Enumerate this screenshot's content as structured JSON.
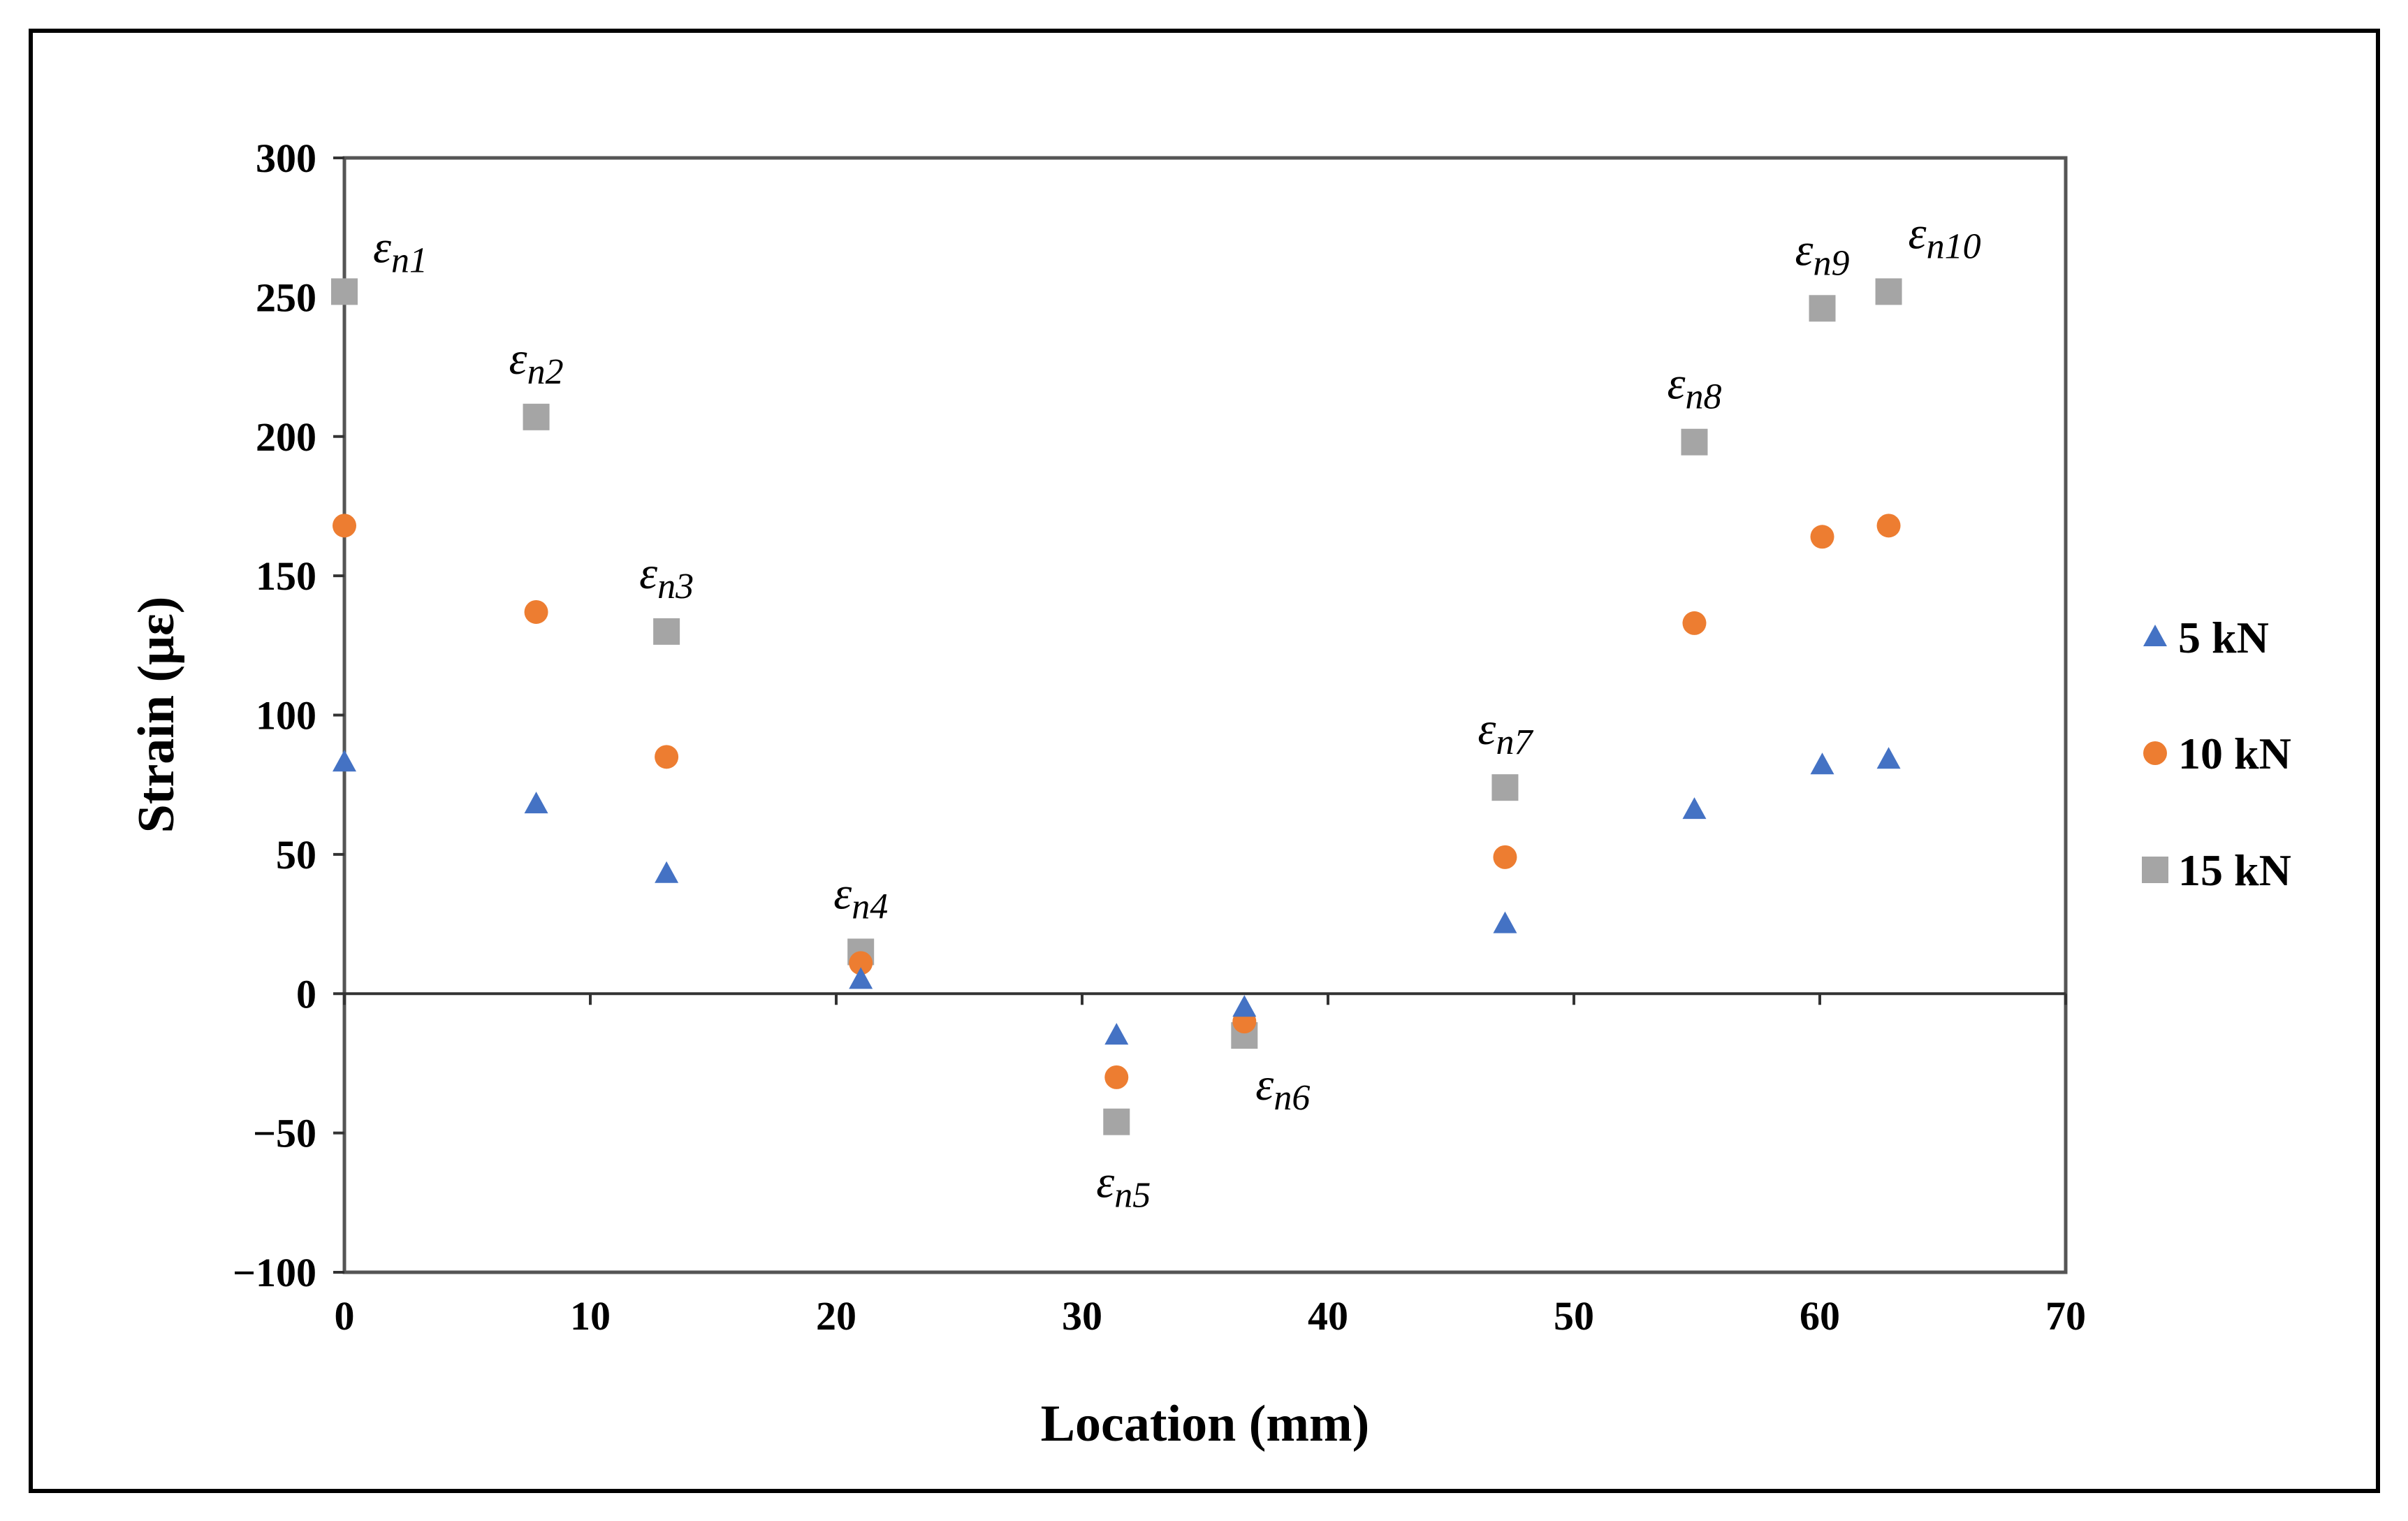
{
  "chart_data": {
    "type": "scatter",
    "xlabel": "Location (mm)",
    "ylabel": "Strain (με)",
    "xlim": [
      0,
      70
    ],
    "ylim": [
      -100,
      300
    ],
    "x_ticks": [
      0,
      10,
      20,
      30,
      40,
      50,
      60,
      70
    ],
    "y_ticks": [
      -100,
      -50,
      0,
      50,
      100,
      150,
      200,
      250,
      300
    ],
    "y_tick_labels": [
      "−100",
      "−50",
      "0",
      "50",
      "100",
      "150",
      "200",
      "250",
      "300"
    ],
    "grid": false,
    "legend_position": "right",
    "series": [
      {
        "name": "5 kN",
        "color": "#4472C4",
        "marker": "triangle",
        "x": [
          0,
          7.8,
          13.1,
          21,
          31.4,
          36.6,
          47.2,
          54.9,
          60.1,
          62.8
        ],
        "y": [
          83,
          68,
          43,
          5,
          -15,
          -5,
          25,
          66,
          82,
          84
        ]
      },
      {
        "name": "10 kN",
        "color": "#ED7D31",
        "marker": "circle",
        "x": [
          0,
          7.8,
          13.1,
          21,
          31.4,
          36.6,
          47.2,
          54.9,
          60.1,
          62.8
        ],
        "y": [
          168,
          137,
          85,
          11,
          -30,
          -10,
          49,
          133,
          164,
          168
        ]
      },
      {
        "name": "15 kN",
        "color": "#A5A5A5",
        "marker": "square",
        "x": [
          0,
          7.8,
          13.1,
          21,
          31.4,
          36.6,
          47.2,
          54.9,
          60.1,
          62.8
        ],
        "y": [
          252,
          207,
          130,
          15,
          -46,
          -15,
          74,
          198,
          246,
          252
        ]
      }
    ],
    "annotations": [
      {
        "base": "ε",
        "sub": "n1",
        "x": 0,
        "y": 252,
        "pos": "upper-right"
      },
      {
        "base": "ε",
        "sub": "n2",
        "x": 7.8,
        "y": 207,
        "pos": "above"
      },
      {
        "base": "ε",
        "sub": "n3",
        "x": 13.1,
        "y": 130,
        "pos": "above"
      },
      {
        "base": "ε",
        "sub": "n4",
        "x": 21,
        "y": 15,
        "pos": "above"
      },
      {
        "base": "ε",
        "sub": "n5",
        "x": 31.4,
        "y": -46,
        "pos": "below"
      },
      {
        "base": "ε",
        "sub": "n6",
        "x": 36.6,
        "y": -15,
        "pos": "below-right"
      },
      {
        "base": "ε",
        "sub": "n7",
        "x": 47.2,
        "y": 74,
        "pos": "above"
      },
      {
        "base": "ε",
        "sub": "n8",
        "x": 54.9,
        "y": 198,
        "pos": "above"
      },
      {
        "base": "ε",
        "sub": "n9",
        "x": 60.1,
        "y": 246,
        "pos": "above"
      },
      {
        "base": "ε",
        "sub": "n10",
        "x": 62.8,
        "y": 252,
        "pos": "above-right"
      }
    ]
  }
}
